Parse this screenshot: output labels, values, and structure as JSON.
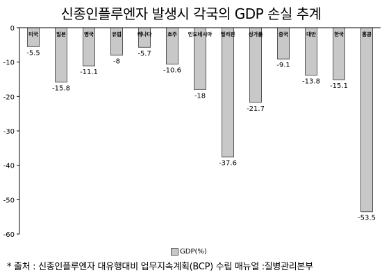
{
  "chart_data": {
    "type": "bar",
    "title": "신종인플루엔자 발생시 각국의 GDP 손실 추계",
    "categories": [
      "미국",
      "일본",
      "영국",
      "유럽",
      "캐나다",
      "호주",
      "인도네시아",
      "필리핀",
      "싱가폴",
      "중국",
      "대만",
      "한국",
      "홍콩"
    ],
    "series": [
      {
        "name": "GDP(%)",
        "values": [
          -5.5,
          -15.8,
          -11.1,
          -8,
          -5.7,
          -10.6,
          -18,
          -37.6,
          -21.7,
          -9.1,
          -13.8,
          -15.1,
          -53.5
        ],
        "labels": [
          "-5.5",
          "-15.8",
          "-11.1",
          "-8",
          "-5.7",
          "-10.6",
          "-18",
          "-37.6",
          "-21.7",
          "-9.1",
          "-13.8",
          "-15.1",
          "-53.5"
        ]
      }
    ],
    "ylim": [
      -60,
      0
    ],
    "yticks": [
      0,
      -10,
      -20,
      -30,
      -40,
      -50,
      -60
    ],
    "ytick_labels": [
      "0",
      "-10",
      "-20",
      "-30",
      "-40",
      "-50",
      "-60"
    ],
    "xlabel": "",
    "ylabel": "",
    "grid": false,
    "legend": "bottom",
    "colors": {
      "bar_fill": "#c8c8c8",
      "bar_stroke": "#555555",
      "axis": "#000000"
    }
  },
  "source": "* 출처 : 신종인플루엔자 대유행대비 업무지속계획(BCP) 수립 매뉴얼 :질병관리본부"
}
